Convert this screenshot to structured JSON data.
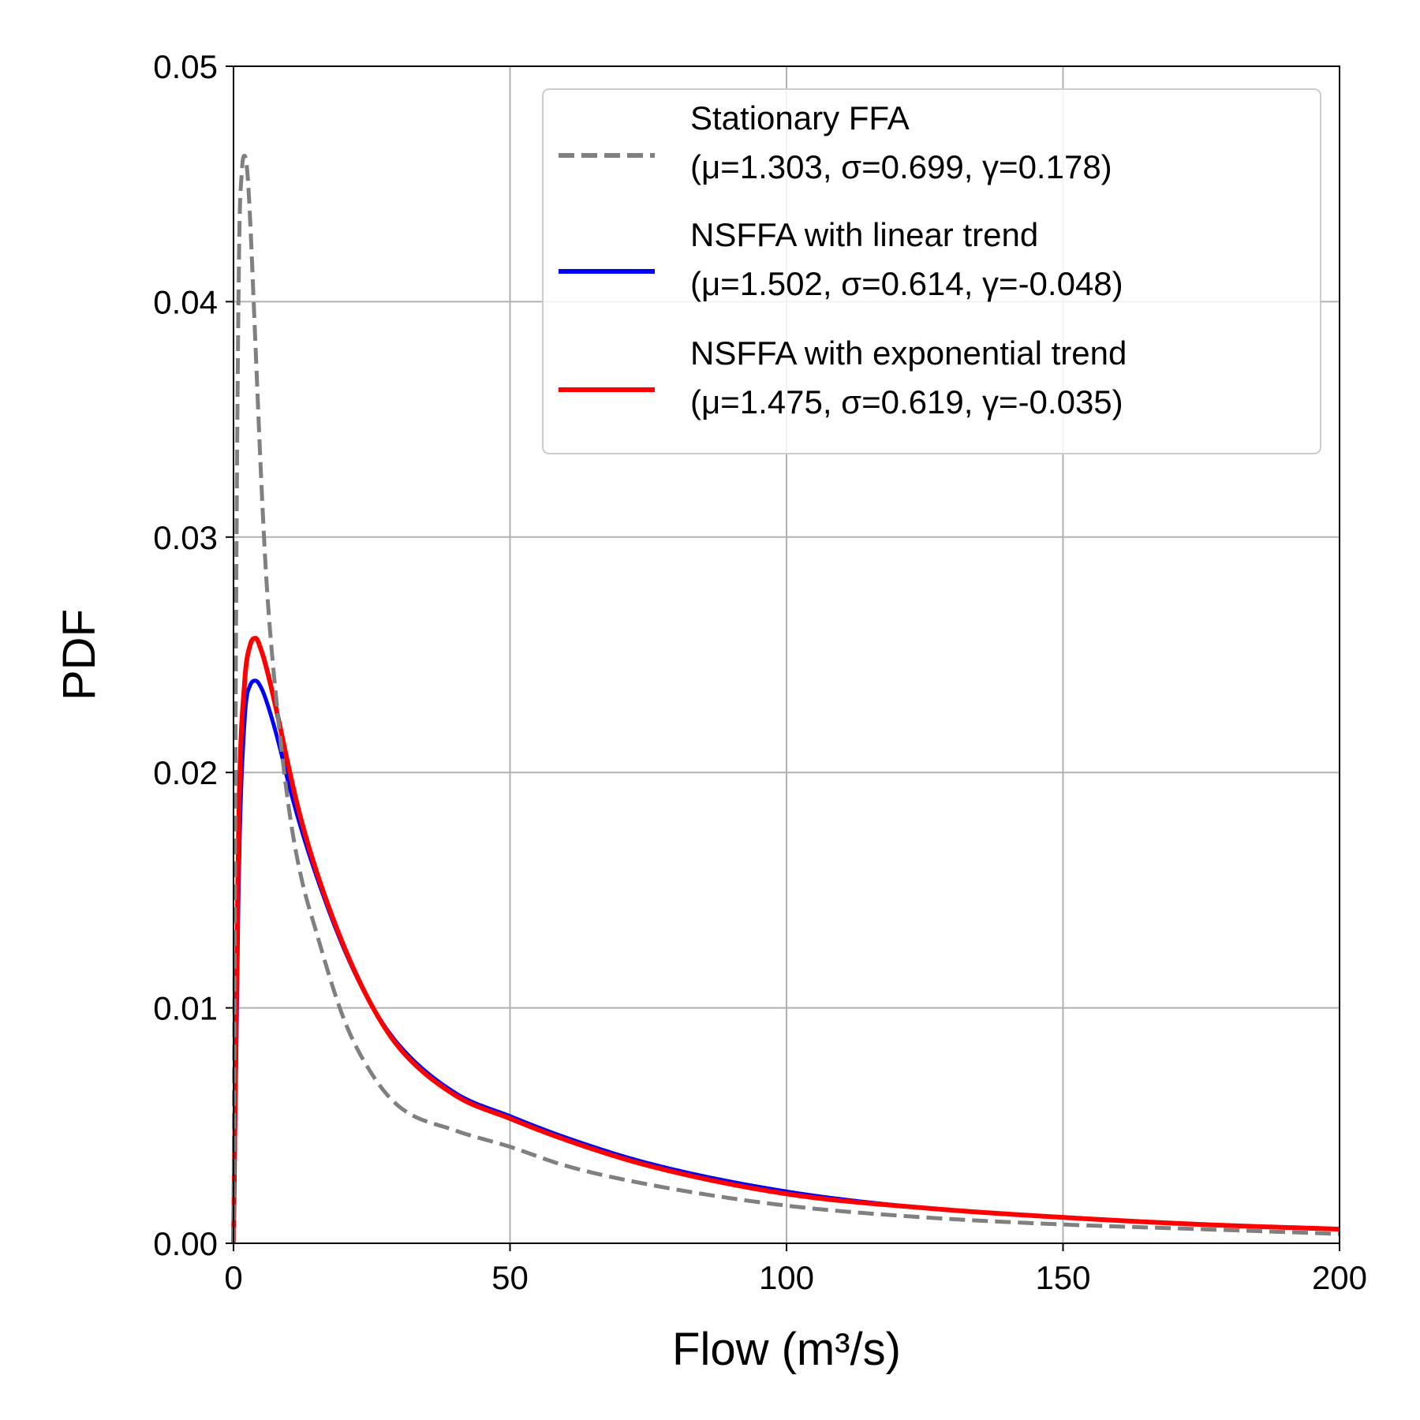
{
  "chart_data": {
    "type": "line",
    "title": "",
    "xlabel": "Flow (m³/s)",
    "ylabel": "PDF",
    "xlim": [
      0,
      200
    ],
    "ylim": [
      0,
      0.05
    ],
    "xticks": [
      0,
      50,
      100,
      150,
      200
    ],
    "xtick_labels": [
      "0",
      "50",
      "100",
      "150",
      "200"
    ],
    "yticks": [
      0,
      0.01,
      0.02,
      0.03,
      0.04,
      0.05
    ],
    "ytick_labels": [
      "0.00",
      "0.01",
      "0.02",
      "0.03",
      "0.04",
      "0.05"
    ],
    "grid": true,
    "legend_position": "top-right",
    "series": [
      {
        "name": "Stationary FFA",
        "params": "(μ=1.303, σ=0.699, γ=0.178)",
        "color": "#808080",
        "style": "dashed",
        "x": [
          0,
          0.5,
          1,
          1.5,
          2,
          2.5,
          3,
          4,
          5,
          6,
          8,
          10,
          12,
          15,
          20,
          25,
          30,
          40,
          50,
          60,
          75,
          100,
          125,
          150,
          175,
          200
        ],
        "y": [
          0,
          0.028,
          0.042,
          0.0455,
          0.0462,
          0.0455,
          0.0435,
          0.038,
          0.0325,
          0.028,
          0.0225,
          0.0185,
          0.0158,
          0.0132,
          0.0095,
          0.0072,
          0.0058,
          0.0048,
          0.0041,
          0.0033,
          0.0025,
          0.0016,
          0.0011,
          0.0008,
          0.0006,
          0.0004
        ]
      },
      {
        "name": "NSFFA with linear trend",
        "params": "(μ=1.502, σ=0.614, γ=-0.048)",
        "color": "#0000ff",
        "style": "solid",
        "x": [
          0,
          0.5,
          1,
          2,
          3,
          4,
          5,
          6,
          8,
          10,
          12,
          15,
          20,
          25,
          30,
          40,
          50,
          60,
          75,
          100,
          125,
          150,
          175,
          200
        ],
        "y": [
          0,
          0.008,
          0.016,
          0.0222,
          0.0237,
          0.0239,
          0.0236,
          0.023,
          0.0214,
          0.0195,
          0.0178,
          0.0156,
          0.0125,
          0.0101,
          0.0084,
          0.0064,
          0.0054,
          0.0045,
          0.0034,
          0.0022,
          0.0015,
          0.0011,
          0.0008,
          0.0006
        ]
      },
      {
        "name": "NSFFA with exponential trend",
        "params": "(μ=1.475, σ=0.619, γ=-0.035)",
        "color": "#ff0000",
        "style": "solid",
        "x": [
          0,
          0.5,
          1,
          2,
          3,
          4,
          5,
          6,
          8,
          10,
          12,
          15,
          20,
          25,
          30,
          40,
          50,
          60,
          75,
          100,
          125,
          150,
          175,
          200
        ],
        "y": [
          0,
          0.01,
          0.0185,
          0.0238,
          0.0254,
          0.0257,
          0.0252,
          0.0244,
          0.0224,
          0.0202,
          0.0182,
          0.0158,
          0.0126,
          0.0101,
          0.0083,
          0.0063,
          0.0053,
          0.0044,
          0.0033,
          0.0021,
          0.0015,
          0.0011,
          0.0008,
          0.0006
        ]
      }
    ]
  }
}
